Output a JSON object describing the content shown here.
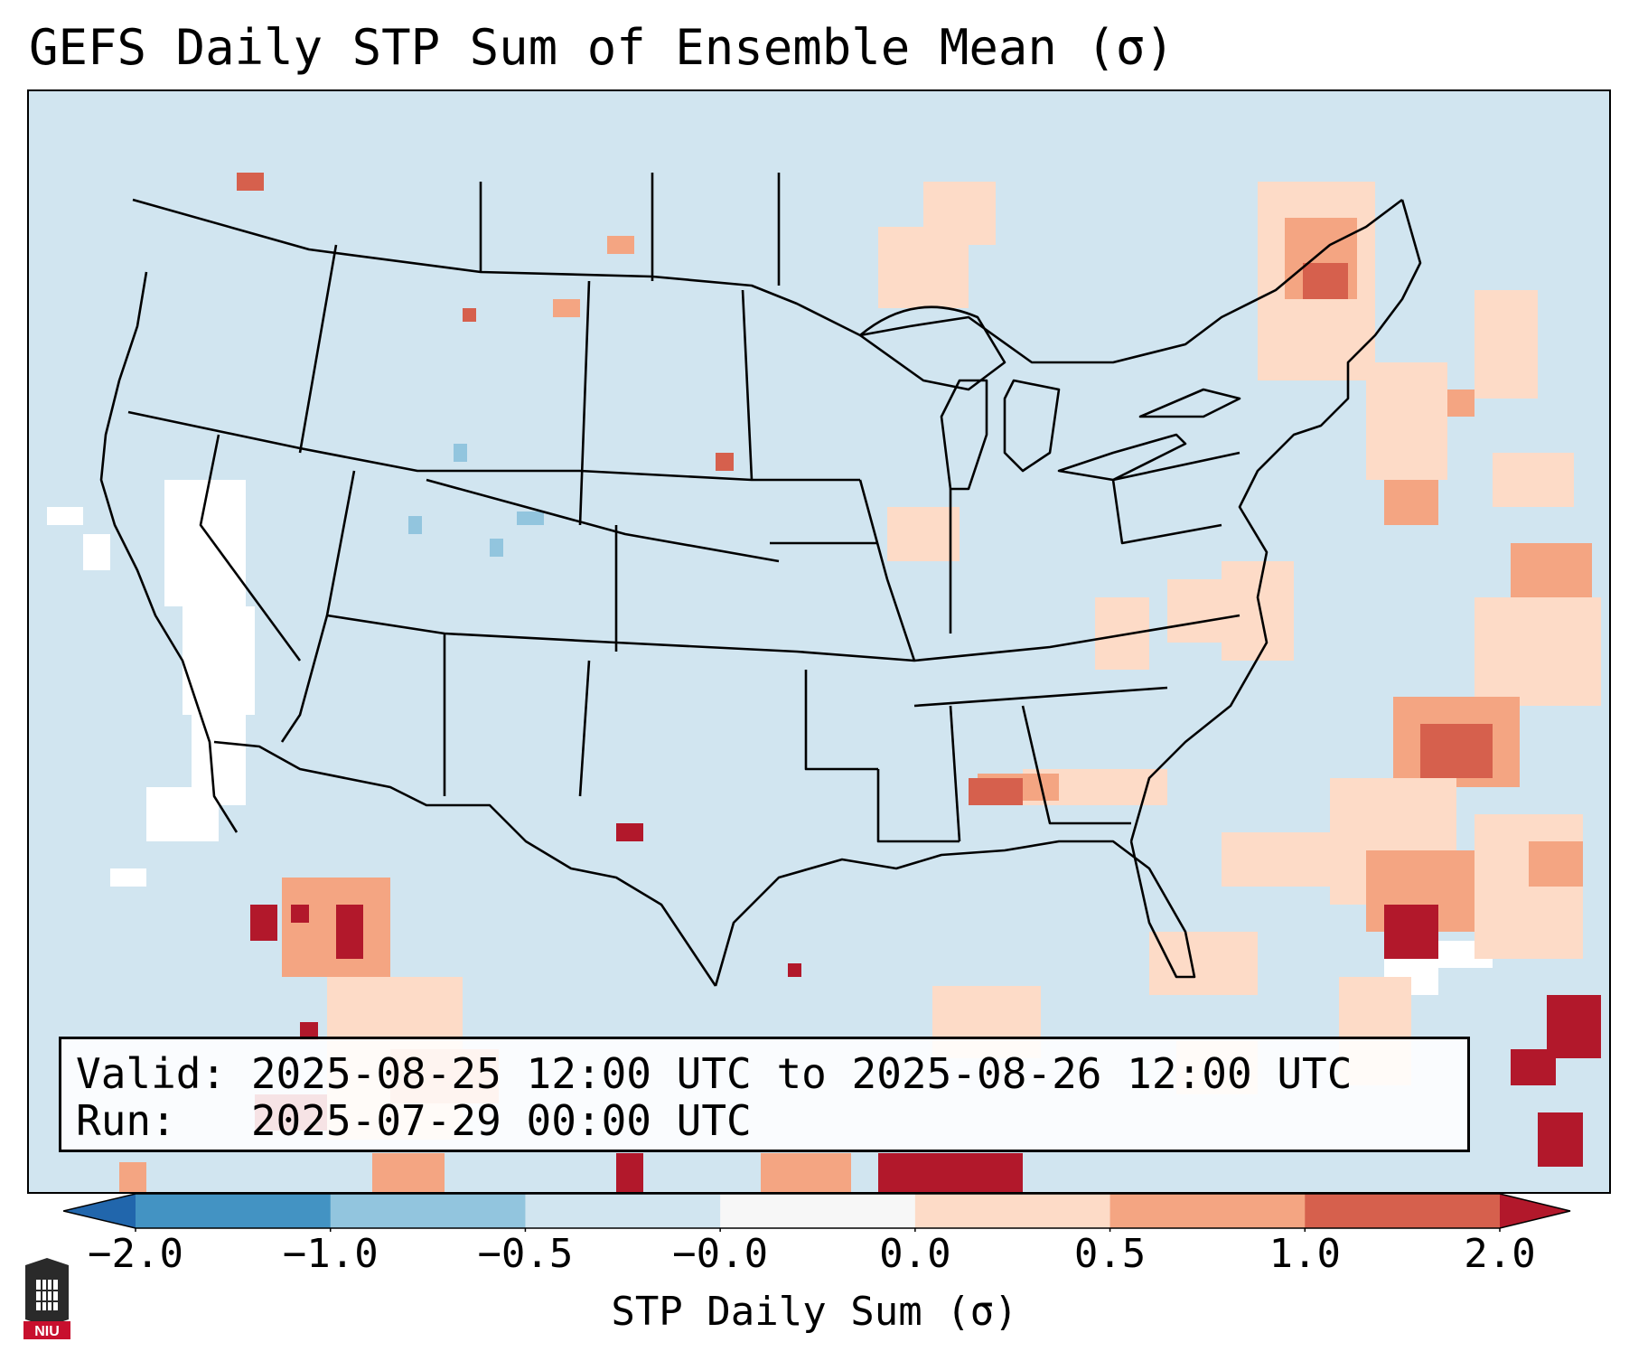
{
  "title": "GEFS Daily STP Sum of Ensemble Mean (σ)",
  "valid_line": "Valid: 2025-08-25 12:00 UTC to 2025-08-26 12:00 UTC",
  "run_line": "Run:   2025-07-29 00:00 UTC",
  "colorbar": {
    "label": "STP Daily Sum (σ)",
    "ticks": [
      "−2.0",
      "−1.0",
      "−0.5",
      "−0.0",
      "0.0",
      "0.5",
      "1.0",
      "2.0"
    ],
    "colors": [
      "#2166ac",
      "#4393c3",
      "#92c5de",
      "#d1e5f0",
      "#f7f7f7",
      "#fddbc7",
      "#f4a582",
      "#d6604d",
      "#b2182b"
    ],
    "extend": "both"
  },
  "map": {
    "region": "Contiguous United States",
    "ocean_land_fill": "#d1e5f0",
    "border_color": "#000000"
  },
  "logo": {
    "text": "NIU",
    "name": "Northern Illinois University"
  }
}
